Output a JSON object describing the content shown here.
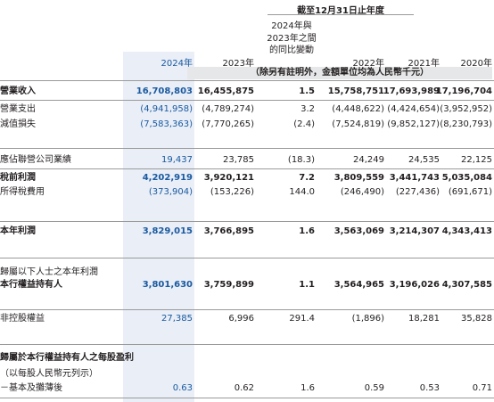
{
  "header": {
    "period": "截至12月31日止年度",
    "yoy_line1": "2024年與",
    "yoy_line2": "2023年之間",
    "yoy_line3": "的同比變動",
    "columns": [
      "2024年",
      "2023年",
      "",
      "2022年",
      "2021年",
      "2020年"
    ],
    "unit_note": "（除另有註明外，金額單位均為人民幣千元）"
  },
  "rows": [
    {
      "label": "營業收入",
      "bold": true,
      "values": [
        "16,708,803",
        "16,455,875",
        "1.5",
        "15,758,751",
        "17,693,989",
        "17,196,704"
      ]
    },
    {
      "label": "營業支出",
      "bold": false,
      "values": [
        "(4,941,958)",
        "(4,789,274)",
        "3.2",
        "(4,448,622)",
        "(4,424,654)",
        "(3,952,952)"
      ]
    },
    {
      "label": "減值損失",
      "bold": false,
      "values": [
        "(7,583,363)",
        "(7,770,265)",
        "(2.4)",
        "(7,524,819)",
        "(9,852,127)",
        "(8,230,793)"
      ]
    },
    {
      "label": "應佔聯營公司業績",
      "bold": false,
      "values": [
        "19,437",
        "23,785",
        "(18.3)",
        "24,249",
        "24,535",
        "22,125"
      ]
    },
    {
      "label": "稅前利潤",
      "bold": true,
      "values": [
        "4,202,919",
        "3,920,121",
        "7.2",
        "3,809,559",
        "3,441,743",
        "5,035,084"
      ]
    },
    {
      "label": "所得稅費用",
      "bold": false,
      "values": [
        "(373,904)",
        "(153,226)",
        "144.0",
        "(246,490)",
        "(227,436)",
        "(691,671)"
      ]
    },
    {
      "label": "本年利潤",
      "bold": true,
      "values": [
        "3,829,015",
        "3,766,895",
        "1.6",
        "3,563,069",
        "3,214,307",
        "4,343,413"
      ]
    },
    {
      "label": "本行權益持有人",
      "bold": true,
      "values": [
        "3,801,630",
        "3,759,899",
        "1.1",
        "3,564,965",
        "3,196,026",
        "4,307,585"
      ]
    },
    {
      "label": "非控股權益",
      "bold": false,
      "values": [
        "27,385",
        "6,996",
        "291.4",
        "(1,896)",
        "18,281",
        "35,828"
      ]
    },
    {
      "label": "－基本及攤薄後",
      "bold": false,
      "values": [
        "0.63",
        "0.62",
        "1.6",
        "0.59",
        "0.53",
        "0.71"
      ]
    }
  ],
  "section_headings": {
    "attributable": "歸屬以下人士之本年利潤",
    "eps_title": "歸屬於本行權益持有人之每股盈利",
    "eps_unit": "（以每股人民幣元列示）"
  }
}
